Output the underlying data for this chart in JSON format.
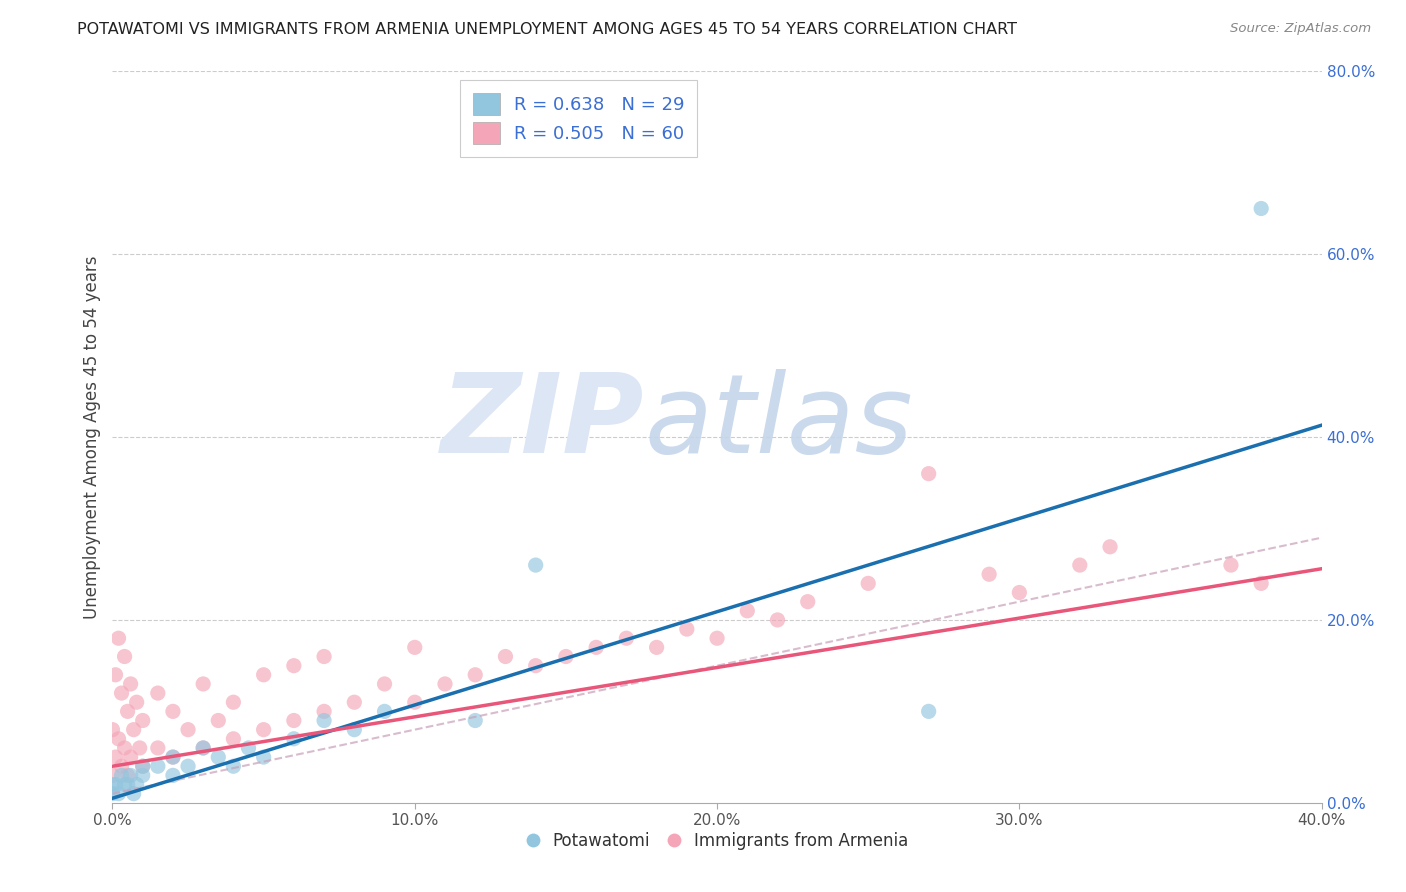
{
  "title": "POTAWATOMI VS IMMIGRANTS FROM ARMENIA UNEMPLOYMENT AMONG AGES 45 TO 54 YEARS CORRELATION CHART",
  "source": "Source: ZipAtlas.com",
  "ylabel": "Unemployment Among Ages 45 to 54 years",
  "xlim": [
    0.0,
    0.4
  ],
  "ylim": [
    0.0,
    0.8
  ],
  "xticks": [
    0.0,
    0.1,
    0.2,
    0.3,
    0.4
  ],
  "yticks": [
    0.0,
    0.2,
    0.4,
    0.6,
    0.8
  ],
  "legend_blue_r": "0.638",
  "legend_blue_n": "29",
  "legend_pink_r": "0.505",
  "legend_pink_n": "60",
  "blue_color": "#92c5de",
  "pink_color": "#f4a6b8",
  "blue_line_color": "#1a6faf",
  "pink_line_color": "#e8567a",
  "dash_line_color": "#f4a6b8",
  "blue_line_slope": 1.02,
  "blue_line_intercept": 0.005,
  "pink_line_slope": 0.54,
  "pink_line_intercept": 0.04,
  "dash_line_slope": 0.7,
  "dash_line_intercept": 0.01,
  "blue_points_x": [
    0.0,
    0.0,
    0.001,
    0.002,
    0.003,
    0.004,
    0.005,
    0.006,
    0.007,
    0.008,
    0.01,
    0.01,
    0.015,
    0.02,
    0.02,
    0.025,
    0.03,
    0.035,
    0.04,
    0.045,
    0.05,
    0.06,
    0.07,
    0.08,
    0.09,
    0.12,
    0.14,
    0.27,
    0.38
  ],
  "blue_points_y": [
    0.01,
    0.02,
    0.02,
    0.01,
    0.03,
    0.02,
    0.02,
    0.03,
    0.01,
    0.02,
    0.03,
    0.04,
    0.04,
    0.03,
    0.05,
    0.04,
    0.06,
    0.05,
    0.04,
    0.06,
    0.05,
    0.07,
    0.09,
    0.08,
    0.1,
    0.09,
    0.26,
    0.1,
    0.65
  ],
  "pink_points_x": [
    0.0,
    0.0,
    0.001,
    0.001,
    0.002,
    0.002,
    0.003,
    0.003,
    0.004,
    0.004,
    0.005,
    0.005,
    0.006,
    0.006,
    0.007,
    0.008,
    0.009,
    0.01,
    0.01,
    0.015,
    0.015,
    0.02,
    0.02,
    0.025,
    0.03,
    0.03,
    0.035,
    0.04,
    0.04,
    0.05,
    0.05,
    0.06,
    0.06,
    0.07,
    0.07,
    0.08,
    0.09,
    0.1,
    0.1,
    0.11,
    0.12,
    0.13,
    0.14,
    0.15,
    0.16,
    0.17,
    0.18,
    0.19,
    0.2,
    0.21,
    0.22,
    0.23,
    0.25,
    0.27,
    0.29,
    0.3,
    0.32,
    0.33,
    0.37,
    0.38
  ],
  "pink_points_y": [
    0.03,
    0.08,
    0.05,
    0.14,
    0.07,
    0.18,
    0.04,
    0.12,
    0.06,
    0.16,
    0.03,
    0.1,
    0.05,
    0.13,
    0.08,
    0.11,
    0.06,
    0.04,
    0.09,
    0.06,
    0.12,
    0.05,
    0.1,
    0.08,
    0.06,
    0.13,
    0.09,
    0.07,
    0.11,
    0.08,
    0.14,
    0.09,
    0.15,
    0.1,
    0.16,
    0.11,
    0.13,
    0.11,
    0.17,
    0.13,
    0.14,
    0.16,
    0.15,
    0.16,
    0.17,
    0.18,
    0.17,
    0.19,
    0.18,
    0.21,
    0.2,
    0.22,
    0.24,
    0.36,
    0.25,
    0.23,
    0.26,
    0.28,
    0.26,
    0.24
  ]
}
